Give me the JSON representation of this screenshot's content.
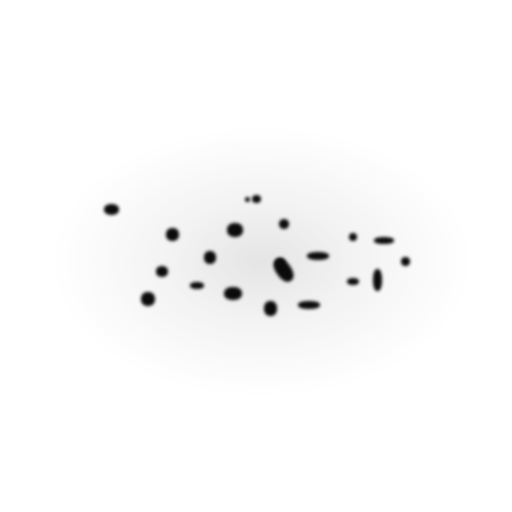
{
  "image": {
    "background_color": "#ffffff",
    "blob_color": "#0b0b0b",
    "halo_color": "#cfcfcf",
    "blob_count": 21
  }
}
